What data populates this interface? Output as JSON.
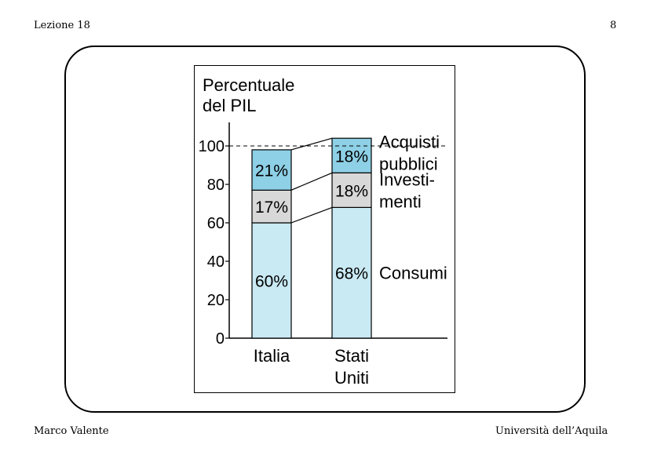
{
  "header": {
    "left": "Lezione 18",
    "right": "8"
  },
  "footer": {
    "left": "Marco Valente",
    "right": "Università dell’Aquila"
  },
  "chart_data": {
    "type": "bar",
    "stacked": true,
    "title": "",
    "ylabel": [
      "Percentuale",
      "del PIL"
    ],
    "xlabel": "",
    "ylim": [
      0,
      110
    ],
    "yticks": [
      0,
      20,
      40,
      60,
      80,
      100
    ],
    "reference_line": {
      "value": 100,
      "style": "dashed"
    },
    "categories": [
      [
        "Italia"
      ],
      [
        "Stati",
        "Uniti"
      ]
    ],
    "series": [
      {
        "name": "Consumi",
        "values": [
          60,
          68
        ],
        "labels": [
          "60%",
          "68%"
        ],
        "color": "#c9e9f3"
      },
      {
        "name": "Investimenti",
        "values": [
          17,
          18
        ],
        "labels": [
          "17%",
          "18%"
        ],
        "color": "#d8d8d8"
      },
      {
        "name": "Acquisti pubblici",
        "values": [
          21,
          18
        ],
        "labels": [
          "21%",
          "18%"
        ],
        "color": "#8ed0e6"
      }
    ],
    "series_side_labels": [
      [
        "Consumi"
      ],
      [
        "Investi-",
        "menti"
      ],
      [
        "Acquisti",
        "pubblici"
      ]
    ],
    "grid": false,
    "legend": "right"
  }
}
